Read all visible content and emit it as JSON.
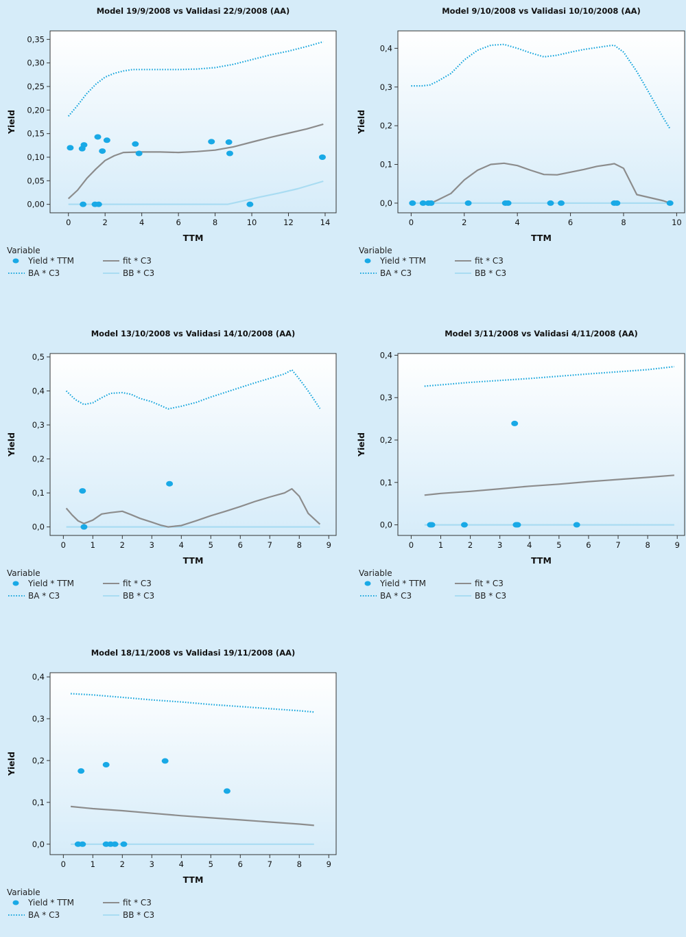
{
  "legend": {
    "title": "Variable",
    "items": [
      {
        "label": "Yield * TTM",
        "style": "dot",
        "color": "#19a9e6"
      },
      {
        "label": "fit * C3",
        "style": "solid",
        "color": "#8c8c8c"
      },
      {
        "label": "BA * C3",
        "style": "dotted",
        "color": "#18a6dc"
      },
      {
        "label": "BB * C3",
        "style": "solid-light",
        "color": "#a9dcf2"
      }
    ]
  },
  "colors": {
    "yield": "#19a9e6",
    "fit": "#8c8c8c",
    "ba": "#18a6dc",
    "bb": "#a9dcf2",
    "plot_top": "#ffffff",
    "plot_bottom": "#d6ecf9"
  },
  "chart_data": [
    {
      "type": "scatter",
      "title": "Model 19/9/2008 vs Validasi 22/9/2008 (AA)",
      "xlabel": "TTM",
      "ylabel": "Yield",
      "xlim": [
        -1,
        14.6
      ],
      "ylim": [
        -0.018,
        0.368
      ],
      "xticks": [
        0,
        2,
        4,
        6,
        8,
        10,
        12,
        14
      ],
      "xtick_labels": [
        "0",
        "2",
        "4",
        "6",
        "8",
        "10",
        "12",
        "14"
      ],
      "yticks": [
        0,
        0.05,
        0.1,
        0.15,
        0.2,
        0.25,
        0.3,
        0.35
      ],
      "ytick_labels": [
        "0,00",
        "0,05",
        "0,10",
        "0,15",
        "0,20",
        "0,25",
        "0,30",
        "0,35"
      ],
      "series": [
        {
          "name": "Yield * TTM",
          "style": "dot",
          "x": [
            0.1,
            0.75,
            0.85,
            1.45,
            1.65,
            1.6,
            1.85,
            2.1,
            3.65,
            3.85,
            0.8,
            7.8,
            8.75,
            8.8,
            9.9,
            13.85
          ],
          "y": [
            0.12,
            0.118,
            0.126,
            0,
            0,
            0.143,
            0.113,
            0.136,
            0.128,
            0.108,
            0,
            0.133,
            0.132,
            0.108,
            0,
            0.1
          ]
        },
        {
          "name": "fit * C3",
          "style": "solid",
          "x": [
            0,
            0.5,
            1,
            1.5,
            2,
            2.5,
            3,
            4,
            5,
            6,
            7,
            8,
            9,
            10,
            11,
            12,
            13,
            13.9
          ],
          "y": [
            0.012,
            0.03,
            0.055,
            0.075,
            0.093,
            0.103,
            0.11,
            0.111,
            0.111,
            0.11,
            0.112,
            0.115,
            0.122,
            0.132,
            0.142,
            0.151,
            0.16,
            0.17
          ]
        },
        {
          "name": "BA * C3",
          "style": "dotted",
          "x": [
            0,
            0.5,
            1,
            1.5,
            2,
            2.5,
            3,
            3.5,
            4,
            5,
            6,
            7,
            8,
            9,
            10,
            11,
            12,
            13,
            13.9
          ],
          "y": [
            0.187,
            0.21,
            0.235,
            0.255,
            0.27,
            0.278,
            0.283,
            0.286,
            0.286,
            0.286,
            0.286,
            0.287,
            0.29,
            0.297,
            0.307,
            0.317,
            0.325,
            0.335,
            0.345
          ]
        },
        {
          "name": "BB * C3",
          "style": "solid-light",
          "x": [
            0,
            2,
            4,
            6,
            8,
            8.7,
            9.5,
            10.5,
            11.5,
            12.5,
            13.9
          ],
          "y": [
            0,
            0,
            0,
            0,
            0,
            0,
            0.007,
            0.016,
            0.024,
            0.033,
            0.049
          ]
        }
      ]
    },
    {
      "type": "scatter",
      "title": "Model 9/10/2008 vs Validasi 10/10/2008 (AA)",
      "xlabel": "TTM",
      "ylabel": "Yield",
      "xlim": [
        -0.5,
        10.3
      ],
      "ylim": [
        -0.025,
        0.445
      ],
      "xticks": [
        0,
        2,
        4,
        6,
        8,
        10
      ],
      "xtick_labels": [
        "0",
        "2",
        "4",
        "6",
        "8",
        "10"
      ],
      "yticks": [
        0,
        0.1,
        0.2,
        0.3,
        0.4
      ],
      "ytick_labels": [
        "0,0",
        "0,1",
        "0,2",
        "0,3",
        "0,4"
      ],
      "series": [
        {
          "name": "Yield * TTM",
          "style": "dot",
          "x": [
            0.05,
            0.45,
            0.65,
            0.75,
            2.15,
            3.55,
            3.65,
            5.25,
            5.65,
            7.65,
            7.75,
            9.75
          ],
          "y": [
            0,
            0,
            0,
            0,
            0,
            0,
            0,
            0,
            0,
            0,
            0,
            0
          ]
        },
        {
          "name": "fit * C3",
          "style": "solid",
          "x": [
            0.75,
            1,
            1.5,
            2,
            2.5,
            3,
            3.5,
            4,
            4.5,
            5,
            5.5,
            6,
            6.5,
            7,
            7.5,
            7.65,
            8,
            8.5,
            9,
            9.5,
            9.75
          ],
          "y": [
            0,
            0.008,
            0.025,
            0.06,
            0.085,
            0.1,
            0.103,
            0.097,
            0.085,
            0.074,
            0.073,
            0.08,
            0.087,
            0.095,
            0.1,
            0.102,
            0.09,
            0.022,
            0.014,
            0.006,
            0
          ]
        },
        {
          "name": "BA * C3",
          "style": "dotted",
          "x": [
            0,
            0.4,
            0.7,
            1,
            1.5,
            2,
            2.5,
            3,
            3.5,
            4,
            4.5,
            5,
            5.5,
            6,
            6.5,
            7,
            7.5,
            7.65,
            8,
            8.5,
            9,
            9.5,
            9.75
          ],
          "y": [
            0.303,
            0.303,
            0.305,
            0.315,
            0.335,
            0.37,
            0.395,
            0.408,
            0.41,
            0.4,
            0.388,
            0.378,
            0.382,
            0.39,
            0.397,
            0.402,
            0.407,
            0.408,
            0.39,
            0.34,
            0.28,
            0.22,
            0.192
          ]
        },
        {
          "name": "BB * C3",
          "style": "solid-light",
          "x": [
            0,
            9.75
          ],
          "y": [
            0,
            0
          ]
        }
      ]
    },
    {
      "type": "scatter",
      "title": "Model 13/10/2008 vs Validasi 14/10/2008 (AA)",
      "xlabel": "TTM",
      "ylabel": "Yield",
      "xlim": [
        -0.45,
        9.25
      ],
      "ylim": [
        -0.025,
        0.51
      ],
      "xticks": [
        0,
        1,
        2,
        3,
        4,
        5,
        6,
        7,
        8,
        9
      ],
      "xtick_labels": [
        "0",
        "1",
        "2",
        "3",
        "4",
        "5",
        "6",
        "7",
        "8",
        "9"
      ],
      "yticks": [
        0,
        0.1,
        0.2,
        0.3,
        0.4,
        0.5
      ],
      "ytick_labels": [
        "0,0",
        "0,1",
        "0,2",
        "0,3",
        "0,4",
        "0,5"
      ],
      "series": [
        {
          "name": "Yield * TTM",
          "style": "dot",
          "x": [
            0.65,
            0.7,
            3.6
          ],
          "y": [
            0.106,
            0,
            0.127
          ]
        },
        {
          "name": "fit * C3",
          "style": "solid",
          "x": [
            0.1,
            0.3,
            0.5,
            0.7,
            1,
            1.3,
            1.6,
            2,
            2.3,
            2.6,
            3,
            3.3,
            3.55,
            4,
            4.5,
            5,
            5.5,
            6,
            6.5,
            7,
            7.5,
            7.75,
            8,
            8.3,
            8.7
          ],
          "y": [
            0.055,
            0.035,
            0.018,
            0.01,
            0.02,
            0.038,
            0.042,
            0.046,
            0.036,
            0.025,
            0.014,
            0.005,
            0,
            0.004,
            0.018,
            0.033,
            0.046,
            0.06,
            0.075,
            0.088,
            0.1,
            0.112,
            0.09,
            0.04,
            0.008
          ]
        },
        {
          "name": "BA * C3",
          "style": "dotted",
          "x": [
            0.1,
            0.4,
            0.7,
            1,
            1.3,
            1.6,
            2,
            2.3,
            2.6,
            3,
            3.3,
            3.55,
            4,
            4.5,
            5,
            5.5,
            6,
            6.5,
            7,
            7.5,
            7.75,
            8,
            8.3,
            8.7
          ],
          "y": [
            0.4,
            0.375,
            0.36,
            0.365,
            0.38,
            0.393,
            0.395,
            0.39,
            0.378,
            0.368,
            0.357,
            0.347,
            0.355,
            0.366,
            0.382,
            0.396,
            0.41,
            0.424,
            0.437,
            0.45,
            0.462,
            0.435,
            0.4,
            0.348
          ]
        },
        {
          "name": "BB * C3",
          "style": "solid-light",
          "x": [
            0.1,
            8.7
          ],
          "y": [
            0,
            0
          ]
        }
      ]
    },
    {
      "type": "scatter",
      "title": "Model 3/11/2008 vs Validasi 4/11/2008 (AA)",
      "xlabel": "TTM",
      "ylabel": "Yield",
      "xlim": [
        -0.45,
        9.25
      ],
      "ylim": [
        -0.025,
        0.404
      ],
      "xticks": [
        0,
        1,
        2,
        3,
        4,
        5,
        6,
        7,
        8,
        9
      ],
      "xtick_labels": [
        "0",
        "1",
        "2",
        "3",
        "4",
        "5",
        "6",
        "7",
        "8",
        "9"
      ],
      "yticks": [
        0,
        0.1,
        0.2,
        0.3,
        0.4
      ],
      "ytick_labels": [
        "0,0",
        "0,1",
        "0,2",
        "0,3",
        "0,4"
      ],
      "series": [
        {
          "name": "Yield * TTM",
          "style": "dot",
          "x": [
            0.65,
            0.7,
            1.8,
            3.5,
            3.55,
            3.6,
            5.6
          ],
          "y": [
            0,
            0,
            0,
            0.239,
            0,
            0,
            0
          ]
        },
        {
          "name": "fit * C3",
          "style": "solid",
          "x": [
            0.45,
            1,
            2,
            3,
            4,
            5,
            6,
            7,
            8,
            8.9
          ],
          "y": [
            0.07,
            0.074,
            0.079,
            0.085,
            0.091,
            0.096,
            0.102,
            0.107,
            0.112,
            0.117
          ]
        },
        {
          "name": "BA * C3",
          "style": "dotted",
          "x": [
            0.45,
            2,
            4,
            6,
            8,
            8.9
          ],
          "y": [
            0.327,
            0.336,
            0.345,
            0.356,
            0.366,
            0.373
          ]
        },
        {
          "name": "BB * C3",
          "style": "solid-light",
          "x": [
            0.45,
            8.9
          ],
          "y": [
            0,
            0
          ]
        }
      ]
    },
    {
      "type": "scatter",
      "title": "Model 18/11/2008 vs Validasi 19/11/2008 (AA)",
      "xlabel": "TTM",
      "ylabel": "Yield",
      "xlim": [
        -0.45,
        9.25
      ],
      "ylim": [
        -0.025,
        0.41
      ],
      "xticks": [
        0,
        1,
        2,
        3,
        4,
        5,
        6,
        7,
        8,
        9
      ],
      "xtick_labels": [
        "0",
        "1",
        "2",
        "3",
        "4",
        "5",
        "6",
        "7",
        "8",
        "9"
      ],
      "yticks": [
        0,
        0.1,
        0.2,
        0.3,
        0.4
      ],
      "ytick_labels": [
        "0,0",
        "0,1",
        "0,2",
        "0,3",
        "0,4"
      ],
      "series": [
        {
          "name": "Yield * TTM",
          "style": "dot",
          "x": [
            0.6,
            0.5,
            0.65,
            1.45,
            1.45,
            1.6,
            1.75,
            2.05,
            3.45,
            5.55
          ],
          "y": [
            0.175,
            0,
            0,
            0.19,
            0,
            0,
            0,
            0,
            0.199,
            0.127
          ]
        },
        {
          "name": "fit * C3",
          "style": "solid",
          "x": [
            0.25,
            1,
            2,
            3,
            4,
            5,
            6,
            7,
            8,
            8.5
          ],
          "y": [
            0.09,
            0.085,
            0.08,
            0.074,
            0.068,
            0.063,
            0.058,
            0.053,
            0.048,
            0.045
          ]
        },
        {
          "name": "BA * C3",
          "style": "dotted",
          "x": [
            0.25,
            1,
            2,
            3,
            4,
            5,
            6,
            7,
            8,
            8.5
          ],
          "y": [
            0.36,
            0.357,
            0.351,
            0.345,
            0.34,
            0.334,
            0.329,
            0.324,
            0.319,
            0.316
          ]
        },
        {
          "name": "BB * C3",
          "style": "solid-light",
          "x": [
            0.25,
            8.5
          ],
          "y": [
            0,
            0
          ]
        }
      ]
    }
  ]
}
